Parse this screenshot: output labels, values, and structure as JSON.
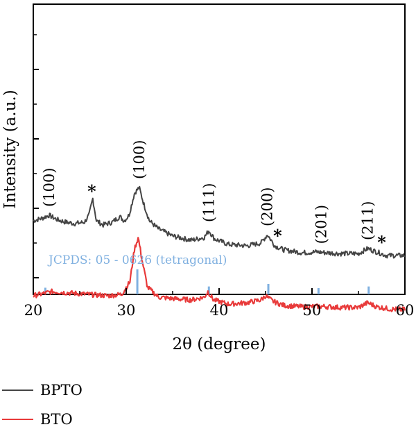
{
  "chart_data": {
    "type": "line",
    "xlabel": "2θ (degree)",
    "ylabel": "Intensity (a.u.)",
    "xlim": [
      20,
      60
    ],
    "xticks": [
      20,
      30,
      40,
      50,
      60
    ],
    "y_tick_labels": false,
    "legend": {
      "placement": "bottom-left",
      "entries": [
        "BPTO",
        "BTO"
      ]
    },
    "colors": {
      "BPTO": "#444444",
      "BTO": "#e83a3a",
      "reference": "#7fb0e0",
      "axes": "#000000"
    },
    "series": [
      {
        "name": "BPTO",
        "x": [
          20,
          21,
          21.7,
          22.5,
          23.5,
          24.5,
          25.5,
          26.0,
          26.4,
          26.8,
          27.5,
          28.5,
          29.3,
          29.8,
          30.3,
          30.9,
          31.4,
          31.9,
          32.5,
          33.5,
          35,
          37,
          38.4,
          38.9,
          39.5,
          41,
          43,
          44.5,
          45.2,
          46.0,
          47,
          49,
          50.5,
          51.5,
          53,
          55,
          56.0,
          56.8,
          58,
          60
        ],
        "y": [
          0.58,
          0.59,
          0.6,
          0.585,
          0.575,
          0.57,
          0.575,
          0.6,
          0.66,
          0.58,
          0.565,
          0.575,
          0.595,
          0.58,
          0.6,
          0.68,
          0.7,
          0.64,
          0.58,
          0.55,
          0.525,
          0.51,
          0.52,
          0.545,
          0.515,
          0.495,
          0.49,
          0.5,
          0.53,
          0.49,
          0.475,
          0.465,
          0.468,
          0.465,
          0.462,
          0.462,
          0.48,
          0.47,
          0.455,
          0.455
        ]
      },
      {
        "name": "BTO",
        "x": [
          20,
          22,
          24,
          26,
          28,
          29.5,
          30.4,
          30.9,
          31.3,
          31.7,
          32.3,
          33.5,
          35,
          37,
          38.4,
          38.8,
          39.4,
          41,
          43,
          44.5,
          45.0,
          45.8,
          47,
          49,
          51,
          53,
          55,
          56.0,
          57,
          58.5,
          60
        ],
        "y": [
          0.31,
          0.325,
          0.32,
          0.315,
          0.31,
          0.315,
          0.36,
          0.48,
          0.52,
          0.44,
          0.34,
          0.305,
          0.3,
          0.295,
          0.305,
          0.325,
          0.295,
          0.28,
          0.285,
          0.295,
          0.31,
          0.29,
          0.275,
          0.27,
          0.272,
          0.268,
          0.268,
          0.285,
          0.27,
          0.262,
          0.26
        ]
      }
    ],
    "reference_pattern": {
      "label": "JCPDS: 05 - 0626 (tetragonal)",
      "lines": [
        {
          "x": 21.3,
          "rel_intensity": 0.12
        },
        {
          "x": 31.2,
          "rel_intensity": 1.0
        },
        {
          "x": 38.9,
          "rel_intensity": 0.18
        },
        {
          "x": 45.3,
          "rel_intensity": 0.3
        },
        {
          "x": 50.7,
          "rel_intensity": 0.1
        },
        {
          "x": 56.1,
          "rel_intensity": 0.18
        }
      ]
    },
    "annotations": [
      {
        "text": "(100)",
        "x": 21.7,
        "series": "BPTO",
        "kind": "miller"
      },
      {
        "text": "*",
        "x": 26.3,
        "series": "BPTO",
        "kind": "impurity"
      },
      {
        "text": "(100)",
        "x": 31.4,
        "series": "BPTO",
        "kind": "miller"
      },
      {
        "text": "(111)",
        "x": 38.9,
        "series": "BPTO",
        "kind": "miller"
      },
      {
        "text": "(200)",
        "x": 45.2,
        "series": "BPTO",
        "kind": "miller"
      },
      {
        "text": "*",
        "x": 46.3,
        "series": "BPTO",
        "kind": "impurity"
      },
      {
        "text": "(201)",
        "x": 51.0,
        "series": "BPTO",
        "kind": "miller"
      },
      {
        "text": "(211)",
        "x": 56.0,
        "series": "BPTO",
        "kind": "miller"
      },
      {
        "text": "*",
        "x": 57.5,
        "series": "BPTO",
        "kind": "impurity"
      }
    ]
  }
}
